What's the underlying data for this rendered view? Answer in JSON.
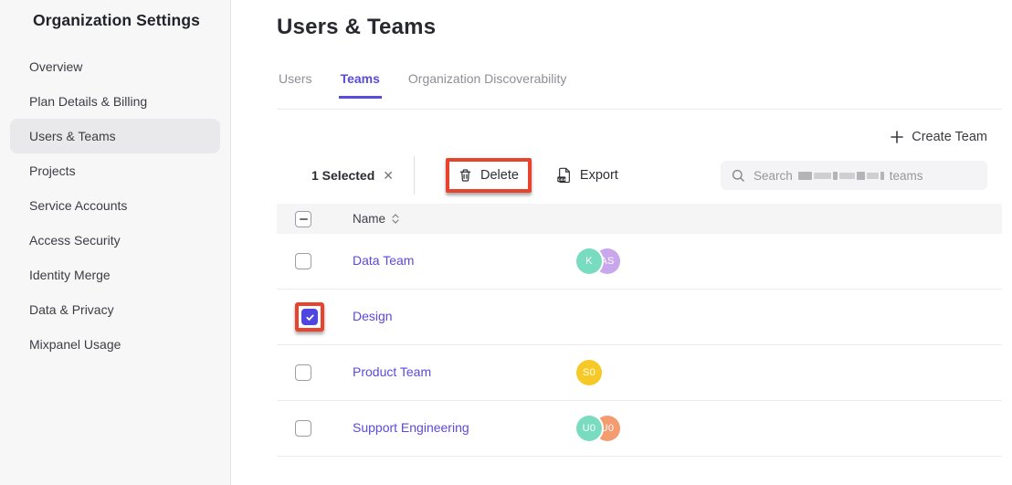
{
  "colors": {
    "purple": "#5a4ae0",
    "checkbox": "#4f46e0",
    "red": "#e8432c"
  },
  "sidebar": {
    "title": "Organization Settings",
    "items": [
      {
        "label": "Overview",
        "active": false
      },
      {
        "label": "Plan Details & Billing",
        "active": false
      },
      {
        "label": "Users & Teams",
        "active": true
      },
      {
        "label": "Projects",
        "active": false
      },
      {
        "label": "Service Accounts",
        "active": false
      },
      {
        "label": "Access Security",
        "active": false
      },
      {
        "label": "Identity Merge",
        "active": false
      },
      {
        "label": "Data & Privacy",
        "active": false
      },
      {
        "label": "Mixpanel Usage",
        "active": false
      }
    ]
  },
  "header": {
    "title": "Users & Teams"
  },
  "tabs": [
    {
      "label": "Users",
      "active": false
    },
    {
      "label": "Teams",
      "active": true
    },
    {
      "label": "Organization Discoverability",
      "active": false
    }
  ],
  "toolbar": {
    "create_team_label": "Create Team",
    "selected_count_label": "1 Selected",
    "delete_label": "Delete",
    "export_label": "Export",
    "search_placeholder_prefix": "Search",
    "search_placeholder_suffix": "teams",
    "search_middle_redacted": true
  },
  "table": {
    "name_header": "Name",
    "rows": [
      {
        "name": "Data Team",
        "checked": false,
        "highlighted": false,
        "avatars": [
          {
            "initials": "K",
            "color": "#79dcc1"
          },
          {
            "initials": "AS",
            "color": "#c9a7ec"
          }
        ]
      },
      {
        "name": "Design",
        "checked": true,
        "highlighted": true,
        "avatars": []
      },
      {
        "name": "Product Team",
        "checked": false,
        "highlighted": false,
        "avatars": [
          {
            "initials": "S0",
            "color": "#f7c926"
          }
        ]
      },
      {
        "name": "Support Engineering",
        "checked": false,
        "highlighted": false,
        "avatars": [
          {
            "initials": "U0",
            "color": "#79dcc1"
          },
          {
            "initials": "U0",
            "color": "#f49b70"
          }
        ]
      }
    ]
  }
}
